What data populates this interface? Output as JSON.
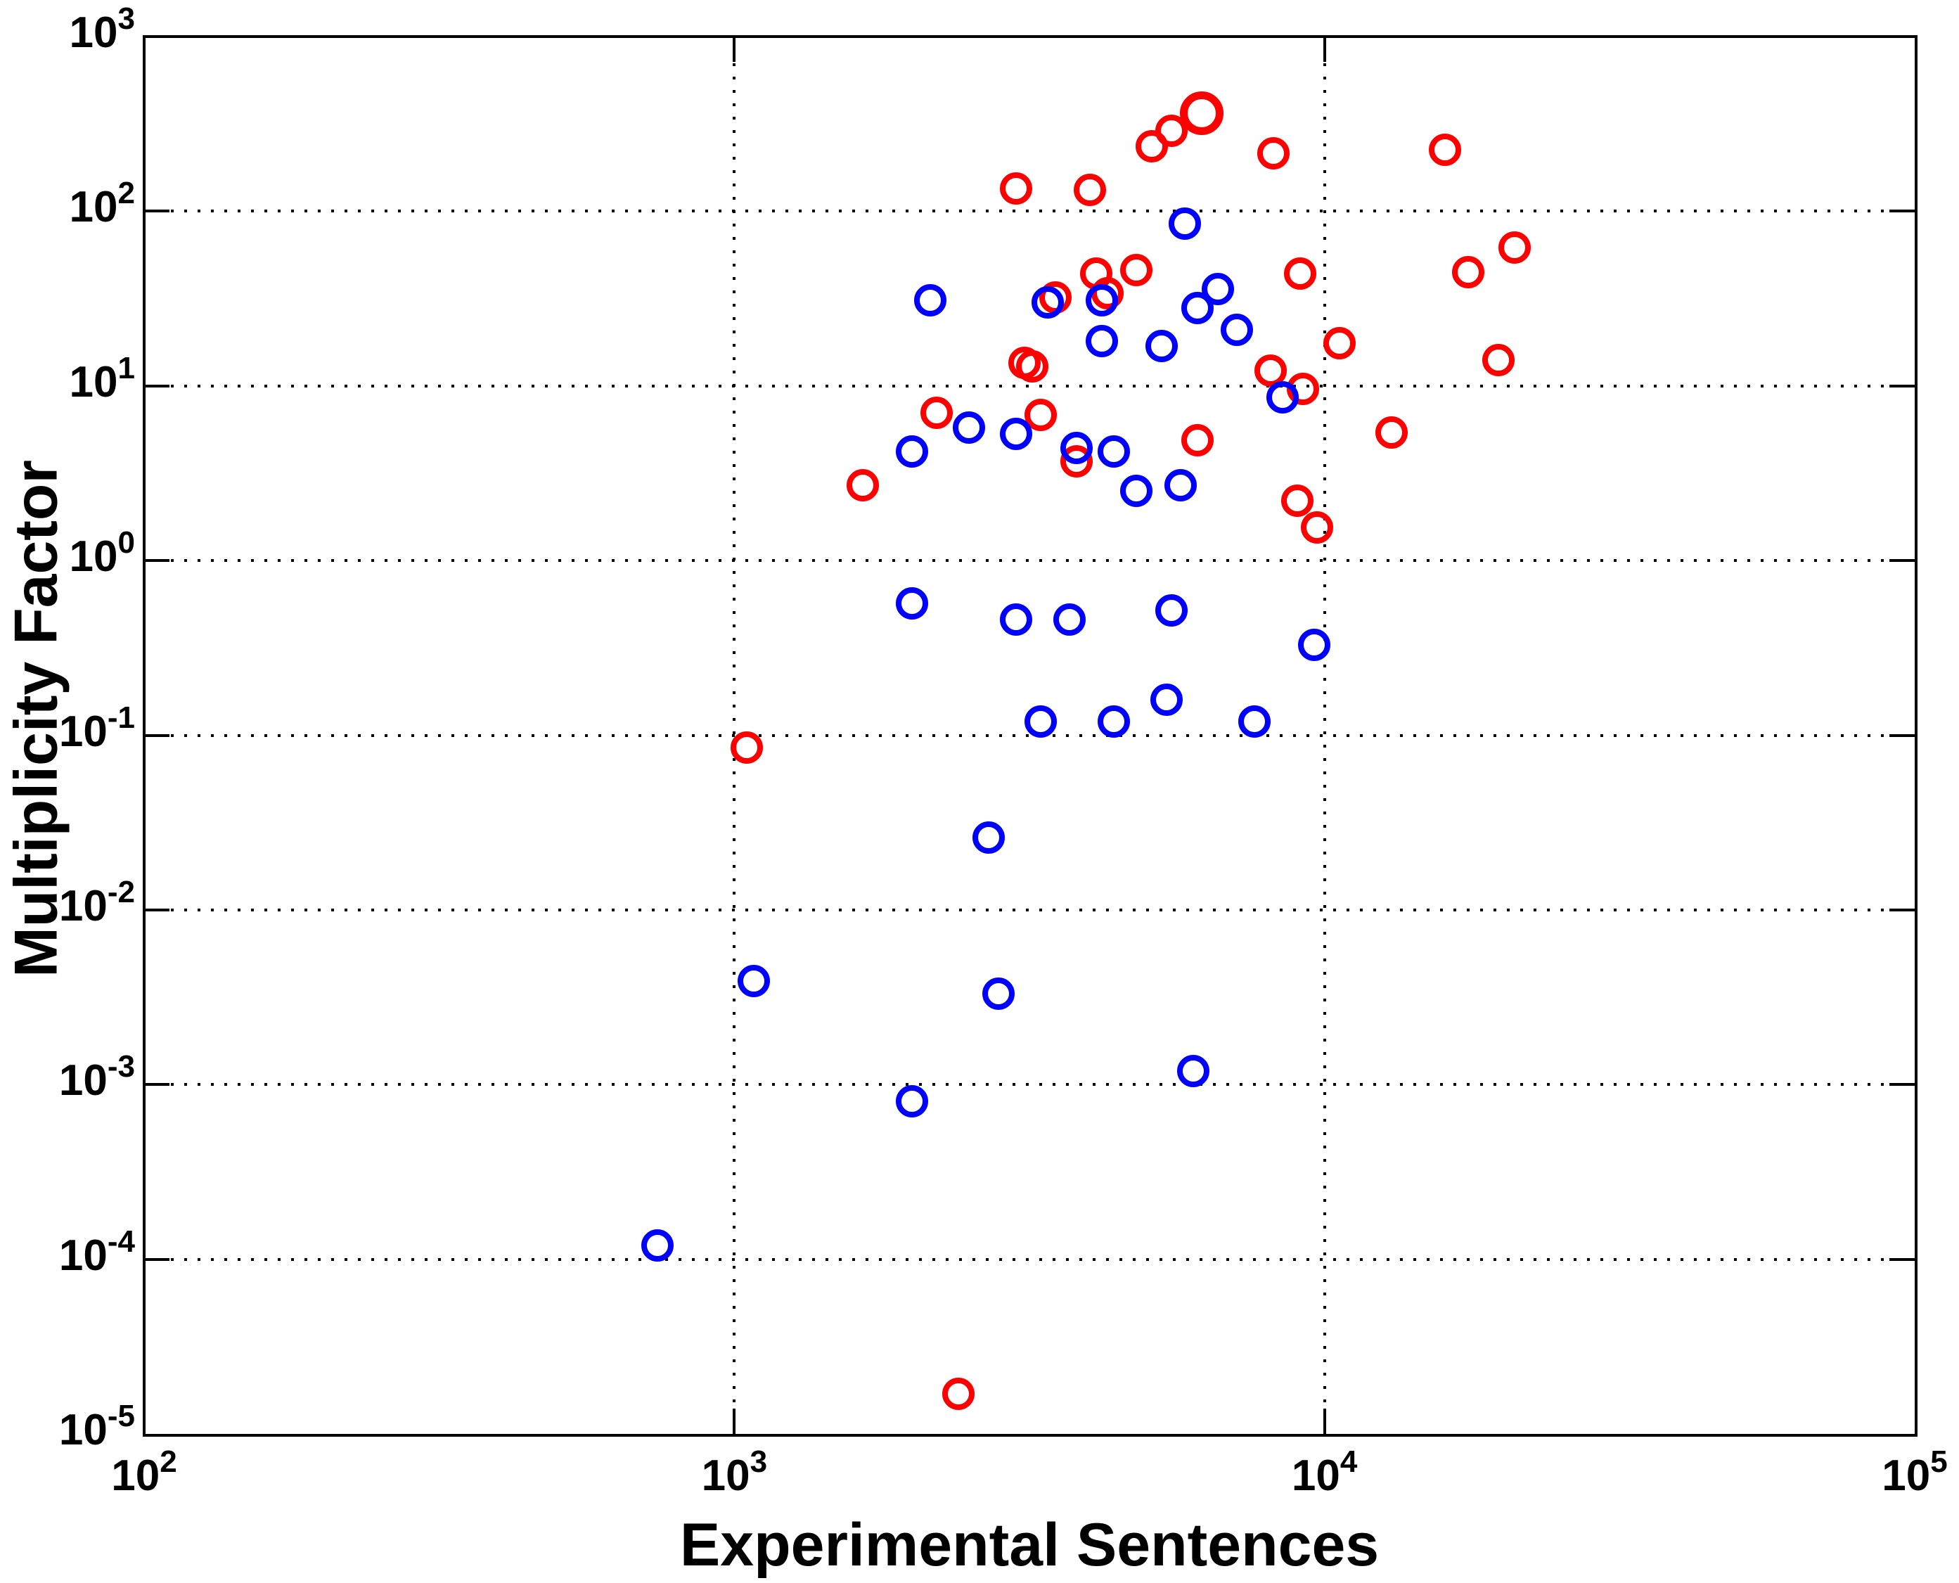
{
  "chart_data": {
    "type": "scatter",
    "title": "",
    "xlabel": "Experimental Sentences",
    "ylabel": "Multiplicity Factor",
    "xscale": "log",
    "yscale": "log",
    "xlim": [
      100,
      100000
    ],
    "ylim": [
      1e-05,
      1000
    ],
    "grid": true,
    "legend": "none",
    "tick_base": "10",
    "x_tick_exponents": [
      2,
      3,
      4,
      5
    ],
    "y_tick_exponents": [
      3,
      2,
      1,
      0,
      -1,
      -2,
      -3,
      -4,
      -5
    ],
    "colors": {
      "series1": "#ff0000",
      "series2": "#0000ff"
    },
    "series": [
      {
        "name": "red-circles",
        "color": "#ff0000",
        "marker": "open-circle",
        "points": [
          [
            3000,
            135
          ],
          [
            4000,
            132
          ],
          [
            5100,
            235
          ],
          [
            5500,
            290
          ],
          [
            6200,
            365,
            1.35
          ],
          [
            8200,
            215
          ],
          [
            16000,
            225
          ],
          [
            21000,
            62
          ],
          [
            17500,
            45
          ],
          [
            19700,
            14
          ],
          [
            4100,
            44
          ],
          [
            4800,
            46
          ],
          [
            9100,
            44
          ],
          [
            4290,
            34
          ],
          [
            3500,
            32
          ],
          [
            3100,
            13.6
          ],
          [
            3200,
            12.9
          ],
          [
            2200,
            7.0
          ],
          [
            3300,
            6.8
          ],
          [
            3800,
            3.7
          ],
          [
            6100,
            4.9
          ],
          [
            8100,
            12.2
          ],
          [
            9200,
            9.6
          ],
          [
            10600,
            17.5
          ],
          [
            13000,
            5.4
          ],
          [
            9000,
            2.2
          ],
          [
            9700,
            1.55
          ],
          [
            1650,
            2.7
          ],
          [
            1050,
            0.085
          ],
          [
            2400,
            1.7e-05
          ]
        ]
      },
      {
        "name": "blue-circles",
        "color": "#0000ff",
        "marker": "open-circle",
        "points": [
          [
            2150,
            31
          ],
          [
            5800,
            85
          ],
          [
            6600,
            36
          ],
          [
            6100,
            28
          ],
          [
            7100,
            21
          ],
          [
            4200,
            18
          ],
          [
            5300,
            17
          ],
          [
            4200,
            31
          ],
          [
            3400,
            30
          ],
          [
            3800,
            4.4
          ],
          [
            4400,
            4.2
          ],
          [
            4800,
            2.5
          ],
          [
            5700,
            2.7
          ],
          [
            3000,
            5.3
          ],
          [
            2500,
            5.8
          ],
          [
            2000,
            4.2
          ],
          [
            8500,
            8.6
          ],
          [
            2000,
            0.57
          ],
          [
            3000,
            0.46
          ],
          [
            3700,
            0.46
          ],
          [
            5500,
            0.52
          ],
          [
            9600,
            0.33
          ],
          [
            5400,
            0.16
          ],
          [
            3300,
            0.12
          ],
          [
            4400,
            0.12
          ],
          [
            7600,
            0.12
          ],
          [
            2700,
            0.026
          ],
          [
            1080,
            0.0039
          ],
          [
            2800,
            0.0033
          ],
          [
            6000,
            0.0012
          ],
          [
            2000,
            0.0008
          ],
          [
            740,
            0.00012
          ]
        ]
      }
    ]
  }
}
